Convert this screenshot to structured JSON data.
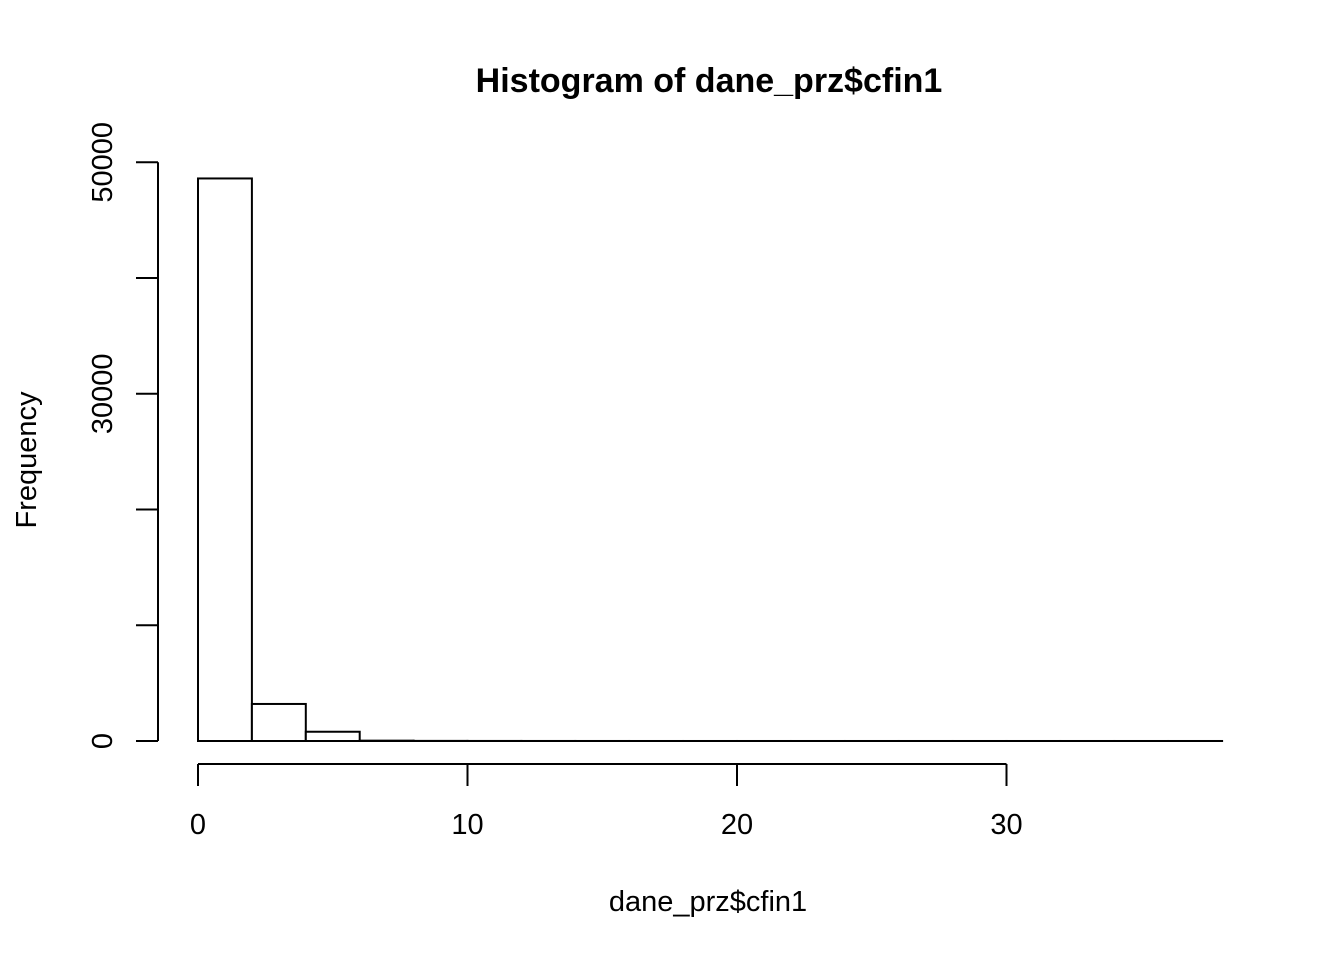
{
  "chart_data": {
    "type": "bar",
    "subtype": "histogram",
    "title": "Histogram of dane_prz$cfin1",
    "xlabel": "dane_prz$cfin1",
    "ylabel": "Frequency",
    "bin_width": 2,
    "bins": [
      {
        "x0": 0,
        "x1": 2,
        "count": 48600
      },
      {
        "x0": 2,
        "x1": 4,
        "count": 3200
      },
      {
        "x0": 4,
        "x1": 6,
        "count": 800
      },
      {
        "x0": 6,
        "x1": 8,
        "count": 30
      },
      {
        "x0": 8,
        "x1": 10,
        "count": 10
      },
      {
        "x0": 10,
        "x1": 12,
        "count": 5
      },
      {
        "x0": 12,
        "x1": 14,
        "count": 3
      },
      {
        "x0": 14,
        "x1": 16,
        "count": 2
      },
      {
        "x0": 16,
        "x1": 18,
        "count": 1
      },
      {
        "x0": 18,
        "x1": 20,
        "count": 1
      },
      {
        "x0": 20,
        "x1": 22,
        "count": 1
      },
      {
        "x0": 22,
        "x1": 24,
        "count": 1
      },
      {
        "x0": 24,
        "x1": 26,
        "count": 1
      },
      {
        "x0": 26,
        "x1": 28,
        "count": 1
      },
      {
        "x0": 28,
        "x1": 30,
        "count": 1
      },
      {
        "x0": 30,
        "x1": 32,
        "count": 1
      },
      {
        "x0": 32,
        "x1": 34,
        "count": 1
      },
      {
        "x0": 34,
        "x1": 36,
        "count": 1
      },
      {
        "x0": 36,
        "x1": 38,
        "count": 1
      }
    ],
    "xlim": [
      0,
      38
    ],
    "ylim": [
      0,
      50000
    ],
    "x_ticks": [
      0,
      10,
      20,
      30
    ],
    "y_ticks": [
      0,
      10000,
      20000,
      30000,
      40000,
      50000
    ],
    "y_tick_labels": [
      "0",
      "",
      "",
      "30000",
      "",
      "50000"
    ],
    "x_tick_labels": [
      "0",
      "10",
      "20",
      "30"
    ],
    "grid": false,
    "bar_fill": "#ffffff",
    "bar_stroke": "#000000"
  }
}
